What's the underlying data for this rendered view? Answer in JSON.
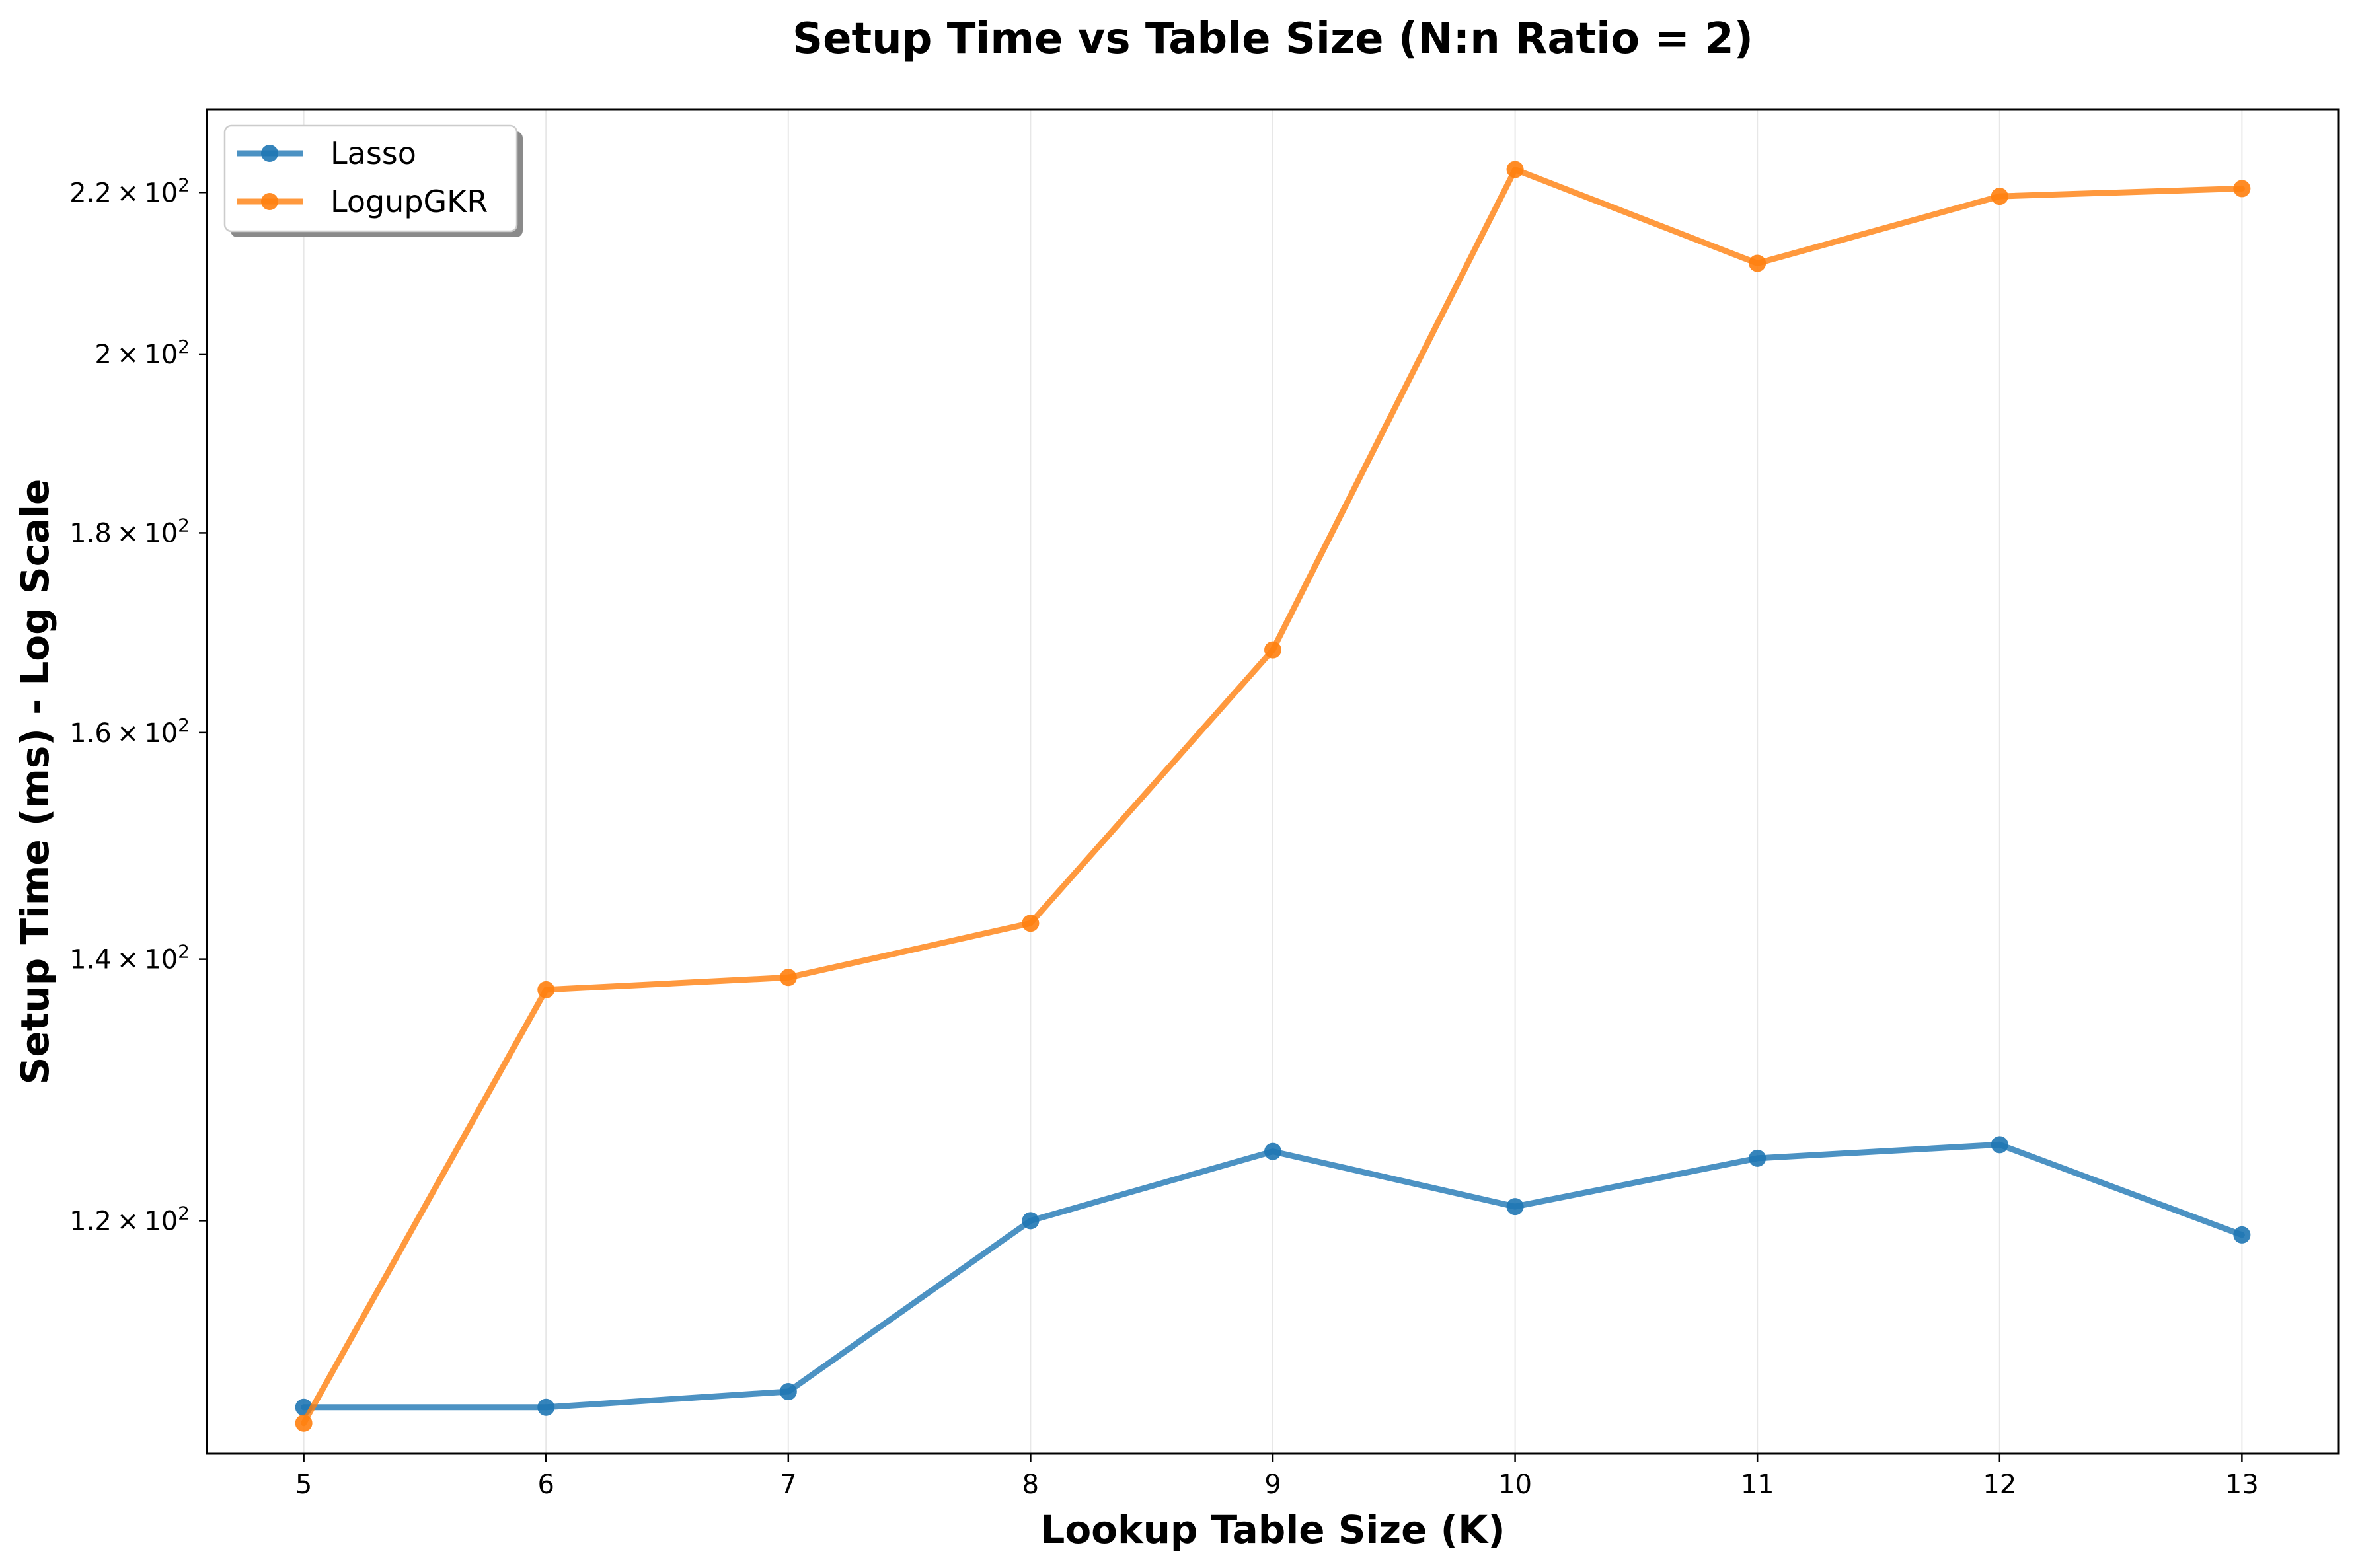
{
  "chart_data": {
    "type": "line",
    "title": "Setup Time vs Table Size (N:n Ratio = 2)",
    "xlabel": "Lookup Table Size (K)",
    "ylabel": "Setup Time (ms) - Log Scale",
    "x": [
      5,
      6,
      7,
      8,
      9,
      10,
      11,
      12,
      13
    ],
    "x_ticks": [
      "5",
      "6",
      "7",
      "8",
      "9",
      "10",
      "11",
      "12",
      "13"
    ],
    "xlim": [
      4.6,
      13.4
    ],
    "yscale": "log",
    "ylim": [
      104.6,
      231
    ],
    "y_ticks": [
      {
        "value": 120,
        "mantissa": "1.2",
        "base": "10",
        "exp": "2"
      },
      {
        "value": 140,
        "mantissa": "1.4",
        "base": "10",
        "exp": "2"
      },
      {
        "value": 160,
        "mantissa": "1.6",
        "base": "10",
        "exp": "2"
      },
      {
        "value": 180,
        "mantissa": "1.8",
        "base": "10",
        "exp": "2"
      },
      {
        "value": 200,
        "mantissa": "2",
        "base": "10",
        "exp": "2"
      },
      {
        "value": 220,
        "mantissa": "2.2",
        "base": "10",
        "exp": "2"
      }
    ],
    "grid": "vertical",
    "legend_position": "top-left",
    "series": [
      {
        "name": "Lasso",
        "color": "#1f77b4",
        "values": [
          107.5,
          107.5,
          108.5,
          120.0,
          125.0,
          121.0,
          124.5,
          125.5,
          119.0
        ]
      },
      {
        "name": "LogupGKR",
        "color": "#ff7f0e",
        "values": [
          106.5,
          137.5,
          138.5,
          143.0,
          168.0,
          223.0,
          211.0,
          219.5,
          220.5
        ]
      }
    ]
  }
}
